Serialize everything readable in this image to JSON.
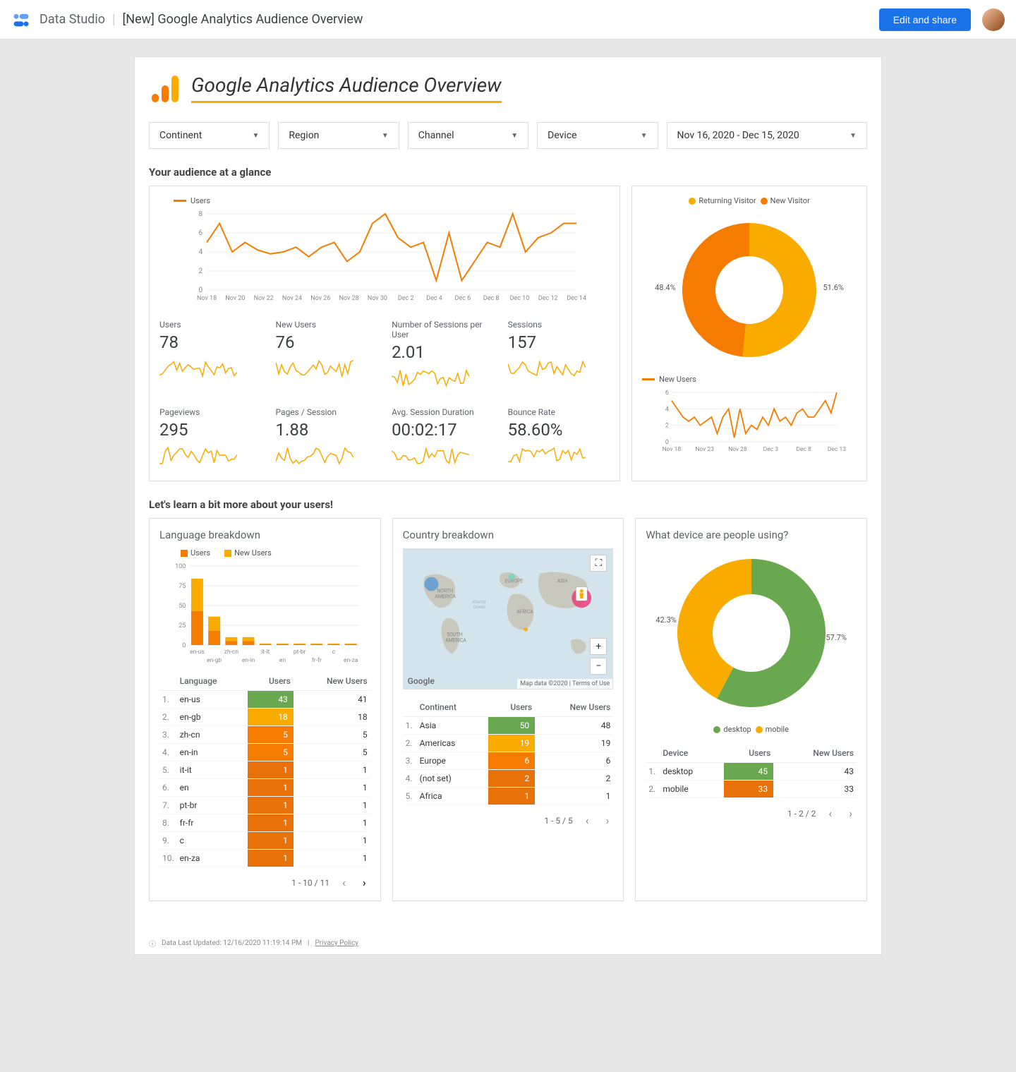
{
  "topbar": {
    "app_name": "Data Studio",
    "doc_title": "[New] Google Analytics Audience Overview",
    "edit_button": "Edit and share"
  },
  "header": {
    "title": "Google Analytics Audience Overview",
    "underline_color": "#f9ab00"
  },
  "filters": {
    "continent": "Continent",
    "region": "Region",
    "channel": "Channel",
    "device": "Device",
    "date_range": "Nov 16, 2020 - Dec 15, 2020"
  },
  "section1": {
    "title": "Your audience at a glance",
    "users_chart": {
      "legend": "Users",
      "color": "#f57c00",
      "y_ticks": [
        0,
        2,
        4,
        6,
        8
      ],
      "x_labels": [
        "Nov 18",
        "Nov 20",
        "Nov 22",
        "Nov 24",
        "Nov 26",
        "Nov 28",
        "Nov 30",
        "Dec 2",
        "Dec 4",
        "Dec 6",
        "Dec 8",
        "Dec 10",
        "Dec 12",
        "Dec 14"
      ],
      "values": [
        5,
        7,
        4,
        5,
        4.2,
        3.8,
        4,
        4.5,
        3.5,
        4.5,
        5,
        3,
        4,
        7,
        8,
        5.5,
        4.5,
        5,
        1,
        6,
        1,
        3,
        5,
        4.5,
        8,
        4,
        5.5,
        6,
        7,
        7
      ]
    },
    "metrics": [
      {
        "label": "Users",
        "value": "78"
      },
      {
        "label": "New Users",
        "value": "76"
      },
      {
        "label": "Number of Sessions per User",
        "value": "2.01"
      },
      {
        "label": "Sessions",
        "value": "157"
      },
      {
        "label": "Pageviews",
        "value": "295"
      },
      {
        "label": "Pages / Session",
        "value": "1.88"
      },
      {
        "label": "Avg. Session Duration",
        "value": "00:02:17"
      },
      {
        "label": "Bounce Rate",
        "value": "58.60%"
      }
    ],
    "sparkline_color": "#f9ab00",
    "visitor_donut": {
      "legend": [
        {
          "label": "Returning Visitor",
          "color": "#f9ab00"
        },
        {
          "label": "New Visitor",
          "color": "#f57c00"
        }
      ],
      "slices": [
        {
          "pct": 51.6,
          "color": "#f9ab00",
          "label": "51.6%"
        },
        {
          "pct": 48.4,
          "color": "#f57c00",
          "label": "48.4%"
        }
      ]
    },
    "new_users_chart": {
      "legend": "New Users",
      "color": "#f57c00",
      "y_ticks": [
        0,
        2,
        4,
        6
      ],
      "x_labels": [
        "Nov 18",
        "Nov 23",
        "Nov 28",
        "Dec 3",
        "Dec 8",
        "Dec 13"
      ],
      "values": [
        5,
        4,
        3,
        2.5,
        3,
        2,
        2.5,
        3,
        1,
        3,
        4,
        0.5,
        4,
        1,
        2,
        1.5,
        3,
        2,
        4,
        2.5,
        3,
        2,
        3.5,
        4,
        3,
        3,
        4,
        5,
        3.5,
        6
      ]
    }
  },
  "section2": {
    "title": "Let's learn a bit more about your users!",
    "language": {
      "title": "Language breakdown",
      "legend": [
        {
          "label": "Users",
          "color": "#f57c00"
        },
        {
          "label": "New Users",
          "color": "#f9ab00"
        }
      ],
      "y_ticks": [
        0,
        25,
        50,
        75,
        100
      ],
      "categories": [
        "en-us",
        "en-gb",
        "zh-cn",
        "en-in",
        "it-it",
        "en",
        "pt-br",
        "fr-fr",
        "c",
        "en-za"
      ],
      "users": [
        43,
        18,
        5,
        5,
        1,
        1,
        1,
        1,
        1,
        1
      ],
      "new_users": [
        41,
        18,
        5,
        5,
        1,
        1,
        1,
        1,
        1,
        1
      ],
      "table": {
        "columns": [
          "",
          "Language",
          "Users",
          "New Users"
        ],
        "rows": [
          [
            "1.",
            "en-us",
            43,
            41
          ],
          [
            "2.",
            "en-gb",
            18,
            18
          ],
          [
            "3.",
            "zh-cn",
            5,
            5
          ],
          [
            "4.",
            "en-in",
            5,
            5
          ],
          [
            "5.",
            "it-it",
            1,
            1
          ],
          [
            "6.",
            "en",
            1,
            1
          ],
          [
            "7.",
            "pt-br",
            1,
            1
          ],
          [
            "8.",
            "fr-fr",
            1,
            1
          ],
          [
            "9.",
            "c",
            1,
            1
          ],
          [
            "10.",
            "en-za",
            1,
            1
          ]
        ],
        "heat_colors": [
          "#6aa84f",
          "#f9ab00",
          "#f57c00",
          "#f57c00",
          "#e8710a",
          "#e8710a",
          "#e8710a",
          "#e8710a",
          "#e8710a",
          "#e8710a"
        ],
        "pager": "1 - 10 / 11"
      }
    },
    "country": {
      "title": "Country breakdown",
      "map_attr": "Map data ©2020 | Terms of Use",
      "map_logo": "Google",
      "table": {
        "columns": [
          "",
          "Continent",
          "Users",
          "New Users"
        ],
        "rows": [
          [
            "1.",
            "Asia",
            50,
            48
          ],
          [
            "2.",
            "Americas",
            19,
            19
          ],
          [
            "3.",
            "Europe",
            6,
            6
          ],
          [
            "4.",
            "(not set)",
            2,
            2
          ],
          [
            "5.",
            "Africa",
            1,
            1
          ]
        ],
        "heat_colors": [
          "#6aa84f",
          "#f9ab00",
          "#f57c00",
          "#e8710a",
          "#e8710a"
        ],
        "pager": "1 - 5 / 5"
      }
    },
    "device": {
      "title": "What device are people using?",
      "donut": {
        "slices": [
          {
            "pct": 57.7,
            "color": "#6aa84f",
            "label": "57.7%"
          },
          {
            "pct": 42.3,
            "color": "#f9ab00",
            "label": "42.3%"
          }
        ],
        "legend": [
          {
            "label": "desktop",
            "color": "#6aa84f"
          },
          {
            "label": "mobile",
            "color": "#f9ab00"
          }
        ]
      },
      "table": {
        "columns": [
          "",
          "Device",
          "Users",
          "New Users"
        ],
        "rows": [
          [
            "1.",
            "desktop",
            45,
            43
          ],
          [
            "2.",
            "mobile",
            33,
            33
          ]
        ],
        "heat_colors": [
          "#6aa84f",
          "#e8710a"
        ],
        "pager": "1 - 2 / 2"
      }
    }
  },
  "footer": {
    "updated": "Data Last Updated: 12/16/2020 11:19:14 PM",
    "privacy": "Privacy Policy"
  }
}
